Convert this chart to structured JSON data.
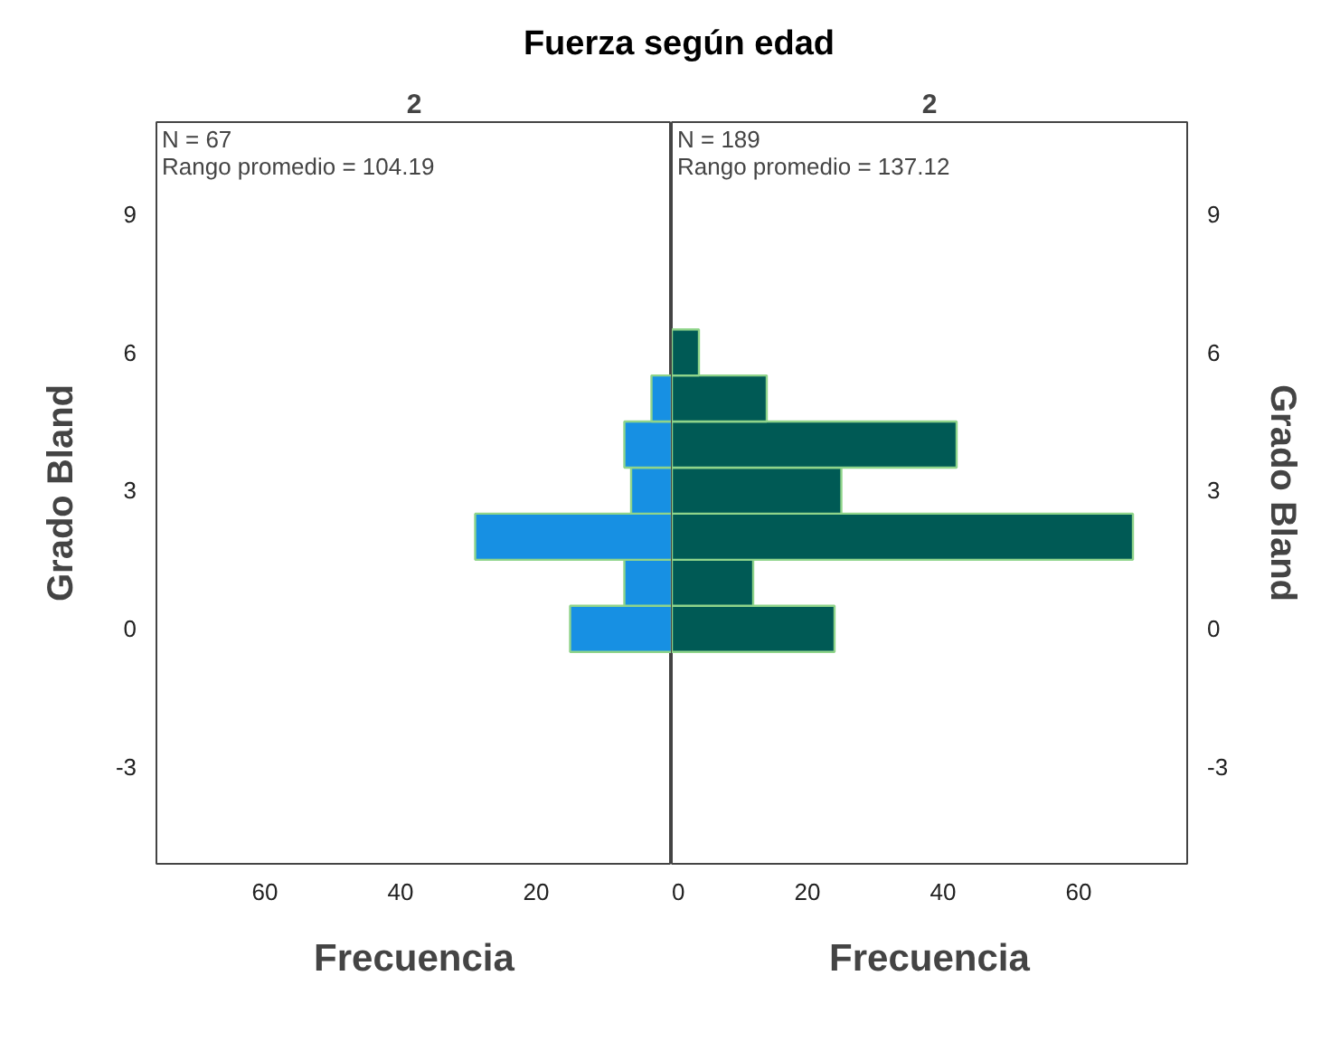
{
  "chart_data": [
    {
      "type": "histogram",
      "orientation": "horizontal",
      "title": "Fuerza según edad",
      "subtitle": "2",
      "xlabel": "Frecuencia",
      "ylabel": "Grado Bland",
      "bins": [
        -0.5,
        0.5,
        1.5,
        2.5,
        3.5,
        4.5,
        5.5,
        6.5
      ],
      "values": [
        15,
        7,
        29,
        6,
        7,
        3,
        0
      ],
      "color": "#1790e3",
      "xlim": [
        76,
        0
      ],
      "xticks": [
        60,
        40,
        20
      ],
      "ylim": [
        -5.1,
        11
      ],
      "yticks": [
        -3,
        0,
        3,
        6,
        9
      ],
      "grid": false,
      "annotations": [
        "N = 67",
        "Rango promedio = 104.19"
      ]
    },
    {
      "type": "histogram",
      "orientation": "horizontal",
      "subtitle": "2",
      "xlabel": "Frecuencia",
      "ylabel": "Grado Bland",
      "bins": [
        -0.5,
        0.5,
        1.5,
        2.5,
        3.5,
        4.5,
        5.5,
        6.5
      ],
      "values": [
        24,
        12,
        68,
        25,
        42,
        14,
        4
      ],
      "color": "#005a55",
      "xlim": [
        0,
        76
      ],
      "xticks": [
        0,
        20,
        40,
        60
      ],
      "ylim": [
        -5.1,
        11
      ],
      "yticks": [
        -3,
        0,
        3,
        6,
        9
      ],
      "grid": false,
      "annotations": [
        "N = 189",
        "Rango promedio = 137.12"
      ]
    }
  ]
}
